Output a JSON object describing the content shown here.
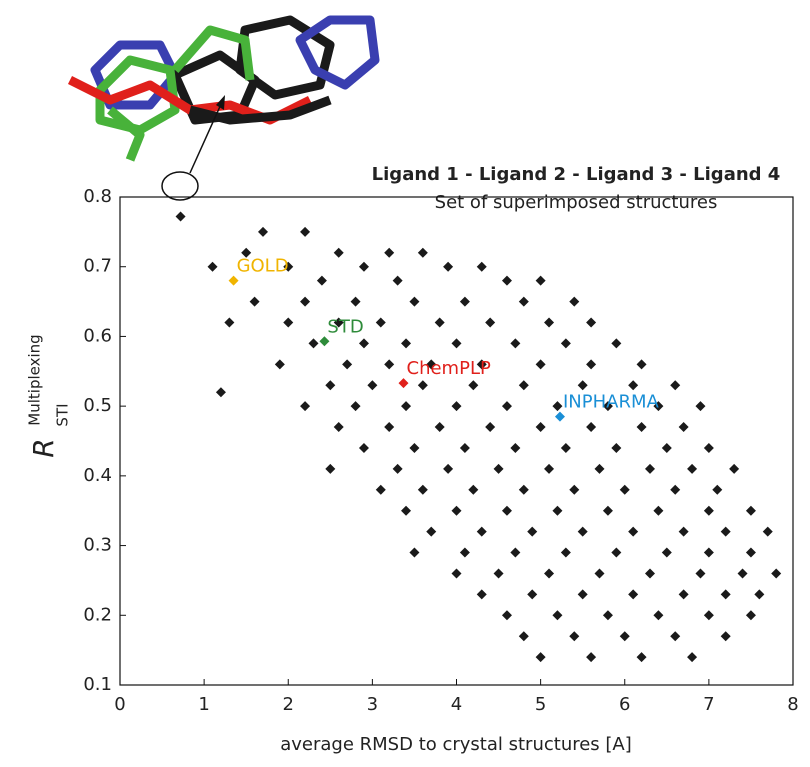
{
  "chart_data": {
    "type": "scatter",
    "title": "Ligand 1 - Ligand 2 - Ligand 3 - Ligand 4",
    "subtitle": "Set of superimposed structures",
    "x_label": "average RMSD to crystal structures [A]",
    "y_label": {
      "main": "R",
      "sup": "Multiplexing",
      "sub": "STI"
    },
    "xlim": [
      0,
      8
    ],
    "ylim": [
      0.1,
      0.8
    ],
    "xticks": [
      0,
      1,
      2,
      3,
      4,
      5,
      6,
      7,
      8
    ],
    "yticks": [
      0.1,
      0.2,
      0.3,
      0.4,
      0.5,
      0.6,
      0.7,
      0.8
    ],
    "cloud": {
      "color": "#1a1a1a",
      "points": [
        [
          0.72,
          0.772
        ],
        [
          1.2,
          0.52
        ],
        [
          1.1,
          0.7
        ],
        [
          1.3,
          0.62
        ],
        [
          1.7,
          0.75
        ],
        [
          2.2,
          0.75
        ],
        [
          1.5,
          0.72
        ],
        [
          2.6,
          0.72
        ],
        [
          3.2,
          0.72
        ],
        [
          3.6,
          0.72
        ],
        [
          2.0,
          0.7
        ],
        [
          2.9,
          0.7
        ],
        [
          3.9,
          0.7
        ],
        [
          4.3,
          0.7
        ],
        [
          2.4,
          0.68
        ],
        [
          3.3,
          0.68
        ],
        [
          4.6,
          0.68
        ],
        [
          5.0,
          0.68
        ],
        [
          1.6,
          0.65
        ],
        [
          2.2,
          0.65
        ],
        [
          2.8,
          0.65
        ],
        [
          3.5,
          0.65
        ],
        [
          4.1,
          0.65
        ],
        [
          4.8,
          0.65
        ],
        [
          5.4,
          0.65
        ],
        [
          2.0,
          0.62
        ],
        [
          2.6,
          0.62
        ],
        [
          3.1,
          0.62
        ],
        [
          3.8,
          0.62
        ],
        [
          4.4,
          0.62
        ],
        [
          5.1,
          0.62
        ],
        [
          5.6,
          0.62
        ],
        [
          2.3,
          0.59
        ],
        [
          2.9,
          0.59
        ],
        [
          3.4,
          0.59
        ],
        [
          4.0,
          0.59
        ],
        [
          4.7,
          0.59
        ],
        [
          5.3,
          0.59
        ],
        [
          5.9,
          0.59
        ],
        [
          1.9,
          0.56
        ],
        [
          2.7,
          0.56
        ],
        [
          3.2,
          0.56
        ],
        [
          3.7,
          0.56
        ],
        [
          4.3,
          0.56
        ],
        [
          5.0,
          0.56
        ],
        [
          5.6,
          0.56
        ],
        [
          6.2,
          0.56
        ],
        [
          2.5,
          0.53
        ],
        [
          3.0,
          0.53
        ],
        [
          3.6,
          0.53
        ],
        [
          4.2,
          0.53
        ],
        [
          4.8,
          0.53
        ],
        [
          5.5,
          0.53
        ],
        [
          6.1,
          0.53
        ],
        [
          6.6,
          0.53
        ],
        [
          2.2,
          0.5
        ],
        [
          2.8,
          0.5
        ],
        [
          3.4,
          0.5
        ],
        [
          4.0,
          0.5
        ],
        [
          4.6,
          0.5
        ],
        [
          5.2,
          0.5
        ],
        [
          5.8,
          0.5
        ],
        [
          6.4,
          0.5
        ],
        [
          6.9,
          0.5
        ],
        [
          2.6,
          0.47
        ],
        [
          3.2,
          0.47
        ],
        [
          3.8,
          0.47
        ],
        [
          4.4,
          0.47
        ],
        [
          5.0,
          0.47
        ],
        [
          5.6,
          0.47
        ],
        [
          6.2,
          0.47
        ],
        [
          6.7,
          0.47
        ],
        [
          2.9,
          0.44
        ],
        [
          3.5,
          0.44
        ],
        [
          4.1,
          0.44
        ],
        [
          4.7,
          0.44
        ],
        [
          5.3,
          0.44
        ],
        [
          5.9,
          0.44
        ],
        [
          6.5,
          0.44
        ],
        [
          7.0,
          0.44
        ],
        [
          2.5,
          0.41
        ],
        [
          3.3,
          0.41
        ],
        [
          3.9,
          0.41
        ],
        [
          4.5,
          0.41
        ],
        [
          5.1,
          0.41
        ],
        [
          5.7,
          0.41
        ],
        [
          6.3,
          0.41
        ],
        [
          6.8,
          0.41
        ],
        [
          7.3,
          0.41
        ],
        [
          3.1,
          0.38
        ],
        [
          3.6,
          0.38
        ],
        [
          4.2,
          0.38
        ],
        [
          4.8,
          0.38
        ],
        [
          5.4,
          0.38
        ],
        [
          6.0,
          0.38
        ],
        [
          6.6,
          0.38
        ],
        [
          7.1,
          0.38
        ],
        [
          3.4,
          0.35
        ],
        [
          4.0,
          0.35
        ],
        [
          4.6,
          0.35
        ],
        [
          5.2,
          0.35
        ],
        [
          5.8,
          0.35
        ],
        [
          6.4,
          0.35
        ],
        [
          7.0,
          0.35
        ],
        [
          7.5,
          0.35
        ],
        [
          3.7,
          0.32
        ],
        [
          4.3,
          0.32
        ],
        [
          4.9,
          0.32
        ],
        [
          5.5,
          0.32
        ],
        [
          6.1,
          0.32
        ],
        [
          6.7,
          0.32
        ],
        [
          7.2,
          0.32
        ],
        [
          7.7,
          0.32
        ],
        [
          3.5,
          0.29
        ],
        [
          4.1,
          0.29
        ],
        [
          4.7,
          0.29
        ],
        [
          5.3,
          0.29
        ],
        [
          5.9,
          0.29
        ],
        [
          6.5,
          0.29
        ],
        [
          7.0,
          0.29
        ],
        [
          7.5,
          0.29
        ],
        [
          4.0,
          0.26
        ],
        [
          4.5,
          0.26
        ],
        [
          5.1,
          0.26
        ],
        [
          5.7,
          0.26
        ],
        [
          6.3,
          0.26
        ],
        [
          6.9,
          0.26
        ],
        [
          7.4,
          0.26
        ],
        [
          7.8,
          0.26
        ],
        [
          4.3,
          0.23
        ],
        [
          4.9,
          0.23
        ],
        [
          5.5,
          0.23
        ],
        [
          6.1,
          0.23
        ],
        [
          6.7,
          0.23
        ],
        [
          7.2,
          0.23
        ],
        [
          7.6,
          0.23
        ],
        [
          4.6,
          0.2
        ],
        [
          5.2,
          0.2
        ],
        [
          5.8,
          0.2
        ],
        [
          6.4,
          0.2
        ],
        [
          7.0,
          0.2
        ],
        [
          7.5,
          0.2
        ],
        [
          4.8,
          0.17
        ],
        [
          5.4,
          0.17
        ],
        [
          6.0,
          0.17
        ],
        [
          6.6,
          0.17
        ],
        [
          7.2,
          0.17
        ],
        [
          5.0,
          0.14
        ],
        [
          5.6,
          0.14
        ],
        [
          6.2,
          0.14
        ],
        [
          6.8,
          0.14
        ]
      ]
    },
    "series": [
      {
        "name": "GOLD",
        "color": "#f0b400",
        "x": [
          1.35
        ],
        "values": [
          0.68
        ]
      },
      {
        "name": "STD",
        "color": "#2e8b3a",
        "x": [
          2.43
        ],
        "values": [
          0.593
        ]
      },
      {
        "name": "ChemPLP",
        "color": "#e0201b",
        "x": [
          3.37
        ],
        "values": [
          0.533
        ]
      },
      {
        "name": "INPHARMA",
        "color": "#1a8fd6",
        "x": [
          5.23
        ],
        "values": [
          0.485
        ]
      }
    ]
  }
}
